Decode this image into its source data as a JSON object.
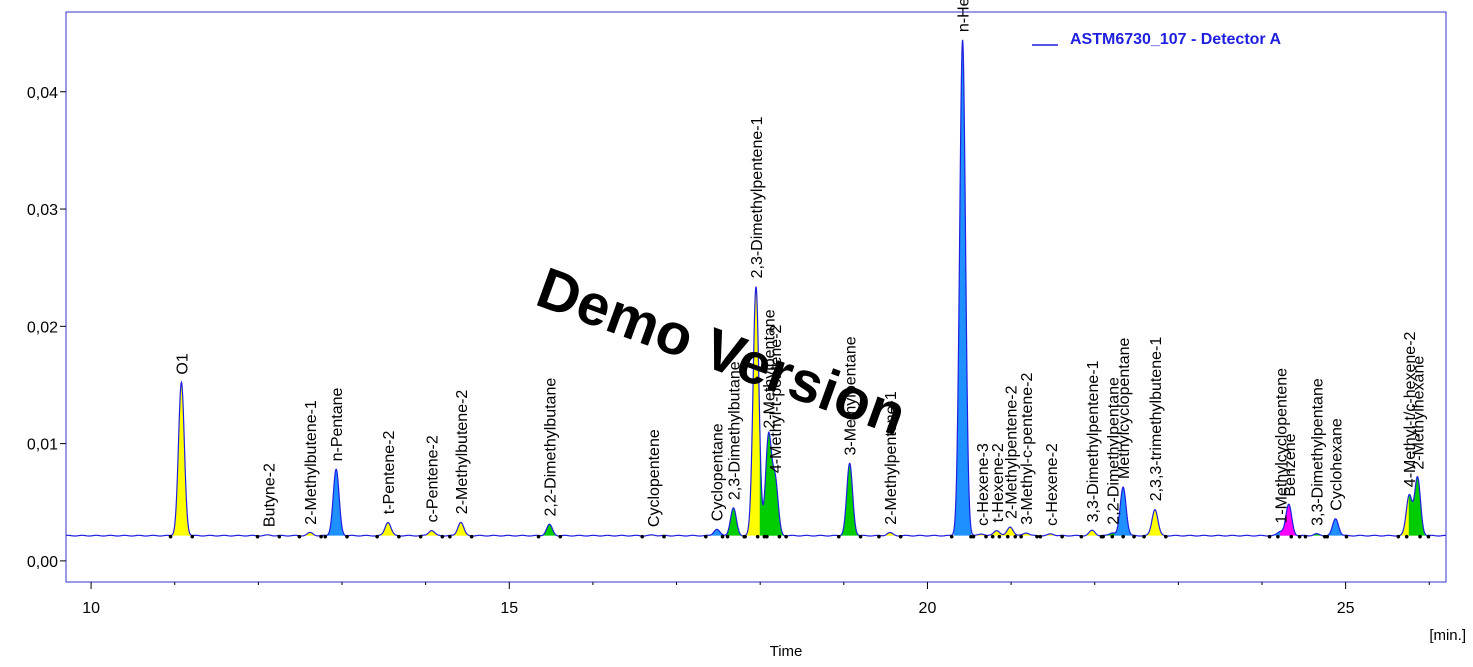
{
  "chart_data": {
    "type": "line",
    "xlabel": "Time",
    "x_unit_label": "[min.]",
    "ylabel": "",
    "xlim": [
      9.7,
      26.2
    ],
    "ylim": [
      -0.0018,
      0.0468
    ],
    "baseline": 0.00215,
    "x_ticks": [
      {
        "value": 10,
        "label": "10"
      },
      {
        "value": 15,
        "label": "15"
      },
      {
        "value": 20,
        "label": "20"
      },
      {
        "value": 25,
        "label": "25"
      }
    ],
    "y_ticks": [
      {
        "value": 0.0,
        "label": "0,00"
      },
      {
        "value": 0.01,
        "label": "0,01"
      },
      {
        "value": 0.02,
        "label": "0,02"
      },
      {
        "value": 0.03,
        "label": "0,03"
      },
      {
        "value": 0.04,
        "label": "0,04"
      }
    ],
    "grid": false,
    "legend": {
      "position": "top-right",
      "entries": [
        {
          "name": "ASTM6730_107 - Detector A",
          "color": "#1f1fe0"
        }
      ]
    },
    "watermark": "Demo Version",
    "series": [
      {
        "name": "ASTM6730_107 - Detector A",
        "color": "#1f1fe0",
        "peaks": [
          {
            "label": "O1",
            "rt": 11.08,
            "height": 0.0152,
            "fill": "#ffff00"
          },
          {
            "label": "Butyne-2",
            "rt": 12.12,
            "height": 0.0022,
            "fill": "#ffff00"
          },
          {
            "label": "2-Methylbutene-1",
            "rt": 12.62,
            "height": 0.0024,
            "fill": "#ffff00"
          },
          {
            "label": "n-Pentane",
            "rt": 12.93,
            "height": 0.0078,
            "fill": "#1e90ff"
          },
          {
            "label": "t-Pentene-2",
            "rt": 13.55,
            "height": 0.0033,
            "fill": "#ffff00"
          },
          {
            "label": "c-Pentene-2",
            "rt": 14.07,
            "height": 0.0026,
            "fill": "#ffff00"
          },
          {
            "label": "2-Methylbutene-2",
            "rt": 14.42,
            "height": 0.0033,
            "fill": "#ffff00"
          },
          {
            "label": "2,2-Dimethylbutane",
            "rt": 15.48,
            "height": 0.0031,
            "fill": "#00cc00"
          },
          {
            "label": "Cyclopentene",
            "rt": 16.72,
            "height": 0.0022,
            "fill": "#ffff00"
          },
          {
            "label": "Cyclopentane",
            "rt": 17.48,
            "height": 0.0027,
            "fill": "#1e90ff"
          },
          {
            "label": "2,3-Dimethylbutane",
            "rt": 17.68,
            "height": 0.0045,
            "fill": "#00cc00"
          },
          {
            "label": "2,3-Dimethylpentene-1",
            "rt": 17.95,
            "height": 0.0234,
            "fill": "#ffff00"
          },
          {
            "label": "2-Methylpentane",
            "rt": 18.1,
            "height": 0.0106,
            "fill": "#00cc00"
          },
          {
            "label": "4-Methyl-t-pentene-2",
            "rt": 18.18,
            "height": 0.0068,
            "fill": "#00cc00"
          },
          {
            "label": "3-Methylpentane",
            "rt": 19.07,
            "height": 0.0083,
            "fill": "#00cc00"
          },
          {
            "label": "2-Methylpentene-1",
            "rt": 19.55,
            "height": 0.0024,
            "fill": "#ffff00"
          },
          {
            "label": "n-Hexane",
            "rt": 20.42,
            "height": 0.0444,
            "fill": "#1e90ff"
          },
          {
            "label": "c-Hexene-3",
            "rt": 20.65,
            "height": 0.0023,
            "fill": "#ffff00"
          },
          {
            "label": "t-Hexene-2",
            "rt": 20.83,
            "height": 0.0026,
            "fill": "#ffff00"
          },
          {
            "label": "2-Methylpentene-2",
            "rt": 20.99,
            "height": 0.0029,
            "fill": "#ffff00"
          },
          {
            "label": "3-Methyl-c-pentene-2",
            "rt": 21.18,
            "height": 0.0024,
            "fill": "#ffff00"
          },
          {
            "label": "c-Hexene-2",
            "rt": 21.48,
            "height": 0.0023,
            "fill": "#ffff00"
          },
          {
            "label": "3,3-Dimethylpentene-1",
            "rt": 21.97,
            "height": 0.0026,
            "fill": "#ffff00"
          },
          {
            "label": "2,2-Dimethylpentane",
            "rt": 22.21,
            "height": 0.0024,
            "fill": "#00cc00"
          },
          {
            "label": "Methylcyclopentane",
            "rt": 22.34,
            "height": 0.0063,
            "fill": "#1e90ff"
          },
          {
            "label": "2,3,3-trimethylbutene-1",
            "rt": 22.72,
            "height": 0.0044,
            "fill": "#ffff00"
          },
          {
            "label": "1-Methylcyclopentene",
            "rt": 24.22,
            "height": 0.0025,
            "fill": "#1e90ff"
          },
          {
            "label": "Benzene",
            "rt": 24.32,
            "height": 0.0048,
            "fill": "#ff00ff"
          },
          {
            "label": "3,3-Dimethylpentane",
            "rt": 24.65,
            "height": 0.0023,
            "fill": "#00cc00"
          },
          {
            "label": "Cyclohexane",
            "rt": 24.88,
            "height": 0.0036,
            "fill": "#1e90ff"
          },
          {
            "label": "4-Methyl-t/c-hexene-2",
            "rt": 25.76,
            "height": 0.0056,
            "fill": "#ffff00"
          },
          {
            "label": "2-Methylhexane",
            "rt": 25.86,
            "height": 0.0071,
            "fill": "#00cc00"
          }
        ]
      }
    ]
  }
}
